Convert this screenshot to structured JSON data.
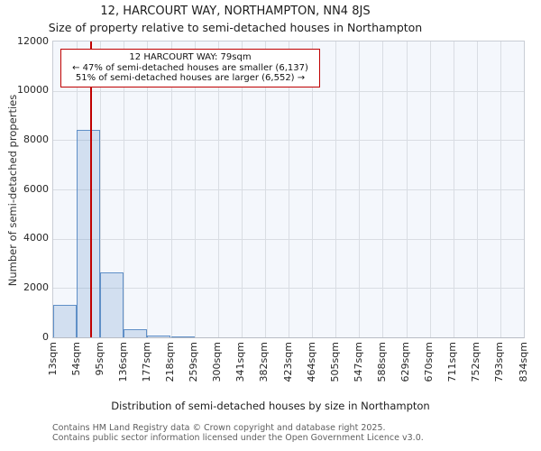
{
  "title": "12, HARCOURT WAY, NORTHAMPTON, NN4 8JS",
  "subtitle": "Size of property relative to semi-detached houses in Northampton",
  "annotation": {
    "line1": "12 HARCOURT WAY: 79sqm",
    "line2": "← 47% of semi-detached houses are smaller (6,137)",
    "line3": "51% of semi-detached houses are larger (6,552) →"
  },
  "footer": {
    "line1": "Contains HM Land Registry data © Crown copyright and database right 2025.",
    "line2": "Contains public sector information licensed under the Open Government Licence v3.0."
  },
  "chart_data": {
    "type": "bar",
    "title": "12, HARCOURT WAY, NORTHAMPTON, NN4 8JS",
    "subtitle": "Size of property relative to semi-detached houses in Northampton",
    "xlabel": "Distribution of semi-detached houses by size in Northampton",
    "ylabel": "Number of semi-detached properties",
    "bin_edges_sqm": [
      13,
      54,
      95,
      136,
      177,
      218,
      259,
      300,
      341,
      382,
      423,
      464,
      505,
      547,
      588,
      629,
      670,
      711,
      752,
      793,
      834
    ],
    "x_tick_labels": [
      "13sqm",
      "54sqm",
      "95sqm",
      "136sqm",
      "177sqm",
      "218sqm",
      "259sqm",
      "300sqm",
      "341sqm",
      "382sqm",
      "423sqm",
      "464sqm",
      "505sqm",
      "547sqm",
      "588sqm",
      "629sqm",
      "670sqm",
      "711sqm",
      "752sqm",
      "793sqm",
      "834sqm"
    ],
    "values": [
      1300,
      8400,
      2650,
      330,
      60,
      25,
      0,
      0,
      0,
      0,
      0,
      0,
      0,
      0,
      0,
      0,
      0,
      0,
      0,
      0
    ],
    "ylim": [
      0,
      12000
    ],
    "ytick_step": 2000,
    "y_tick_labels": [
      "0",
      "2000",
      "4000",
      "6000",
      "8000",
      "10000",
      "12000"
    ],
    "grid": true,
    "legend": false,
    "marker": {
      "value_sqm": 79,
      "smaller_pct": 47,
      "smaller_count": "6,137",
      "larger_pct": 51,
      "larger_count": "6,552"
    },
    "colors": {
      "bar_fill": "#dce6f4",
      "bar_edge": "#5f8fc7",
      "marker_line": "#c00000",
      "plot_bg": "#f4f7fc",
      "grid_line": "#d9dde3"
    }
  }
}
